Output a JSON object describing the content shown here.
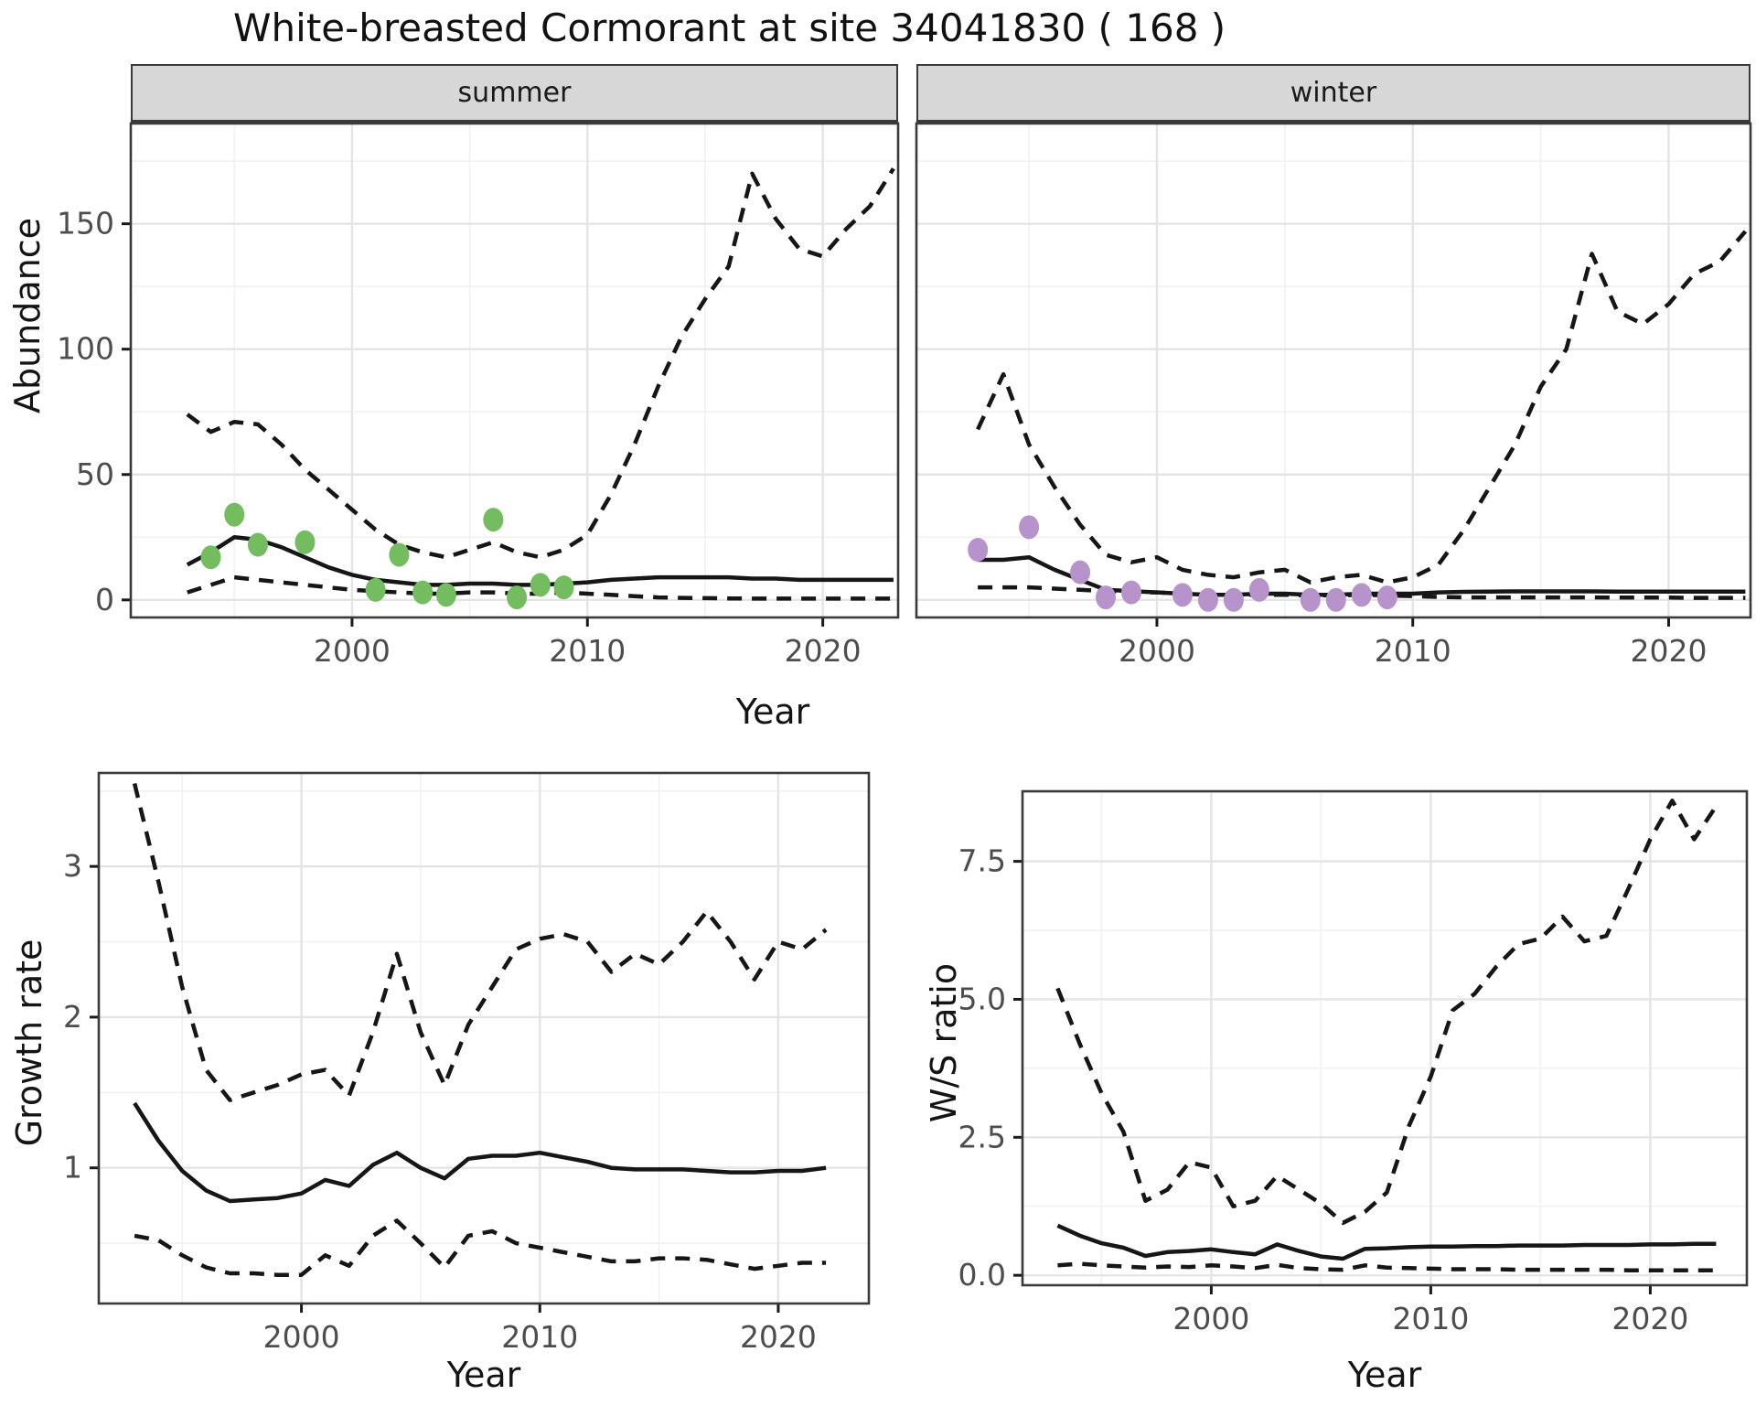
{
  "title": "White-breasted Cormorant at site 34041830 ( 168 )",
  "labels": {
    "year": "Year",
    "abundance": "Abundance",
    "growth_rate": "Growth rate",
    "ws_ratio": "W/S ratio"
  },
  "colors": {
    "summer_points": "#74bc60",
    "winter_points": "#b793cb",
    "line": "#161616",
    "grid_major": "#e4e4e4",
    "grid_minor": "#f1f1f1",
    "strip_bg": "#d7d7d7",
    "panel_border": "#3a3a3a",
    "axis_text": "#4d4d4d"
  },
  "chart_data": [
    {
      "type": "line",
      "facet": "summer",
      "xlabel": "Year",
      "ylabel": "Abundance",
      "xlim": [
        1990.6,
        2023.2
      ],
      "ylim": [
        -7,
        190
      ],
      "x_ticks": [
        2000,
        2010,
        2020
      ],
      "x_tick_labels": [
        "2000",
        "2010",
        "2020"
      ],
      "x_minor": [
        1995,
        2005,
        2015
      ],
      "y_ticks": [
        0,
        50,
        100,
        150
      ],
      "y_tick_labels": [
        "0",
        "50",
        "100",
        "150"
      ],
      "y_minor": [
        25,
        75,
        125,
        175
      ],
      "grid": true,
      "legend": "none",
      "years": [
        1993,
        1994,
        1995,
        1996,
        1997,
        1998,
        1999,
        2000,
        2001,
        2002,
        2003,
        2004,
        2005,
        2006,
        2007,
        2008,
        2009,
        2010,
        2011,
        2012,
        2013,
        2014,
        2015,
        2016,
        2017,
        2018,
        2019,
        2020,
        2021,
        2022,
        2023
      ],
      "series": [
        {
          "name": "fit",
          "style": "solid",
          "values": [
            14,
            19,
            25,
            24,
            21,
            17,
            13,
            10,
            8,
            7,
            6,
            6,
            6.5,
            6.5,
            6,
            6,
            6.5,
            7,
            8,
            8.5,
            9,
            9,
            9,
            9,
            8.5,
            8.5,
            8,
            8,
            8,
            8,
            8
          ]
        },
        {
          "name": "upper_ci",
          "style": "dashed",
          "values": [
            74,
            67,
            71,
            70,
            62,
            52,
            44,
            36,
            28,
            22,
            19,
            17,
            20,
            23,
            19,
            17,
            20,
            26,
            42,
            62,
            85,
            105,
            120,
            133,
            170,
            152,
            140,
            137,
            148,
            157,
            172
          ]
        },
        {
          "name": "lower_ci",
          "style": "dashed",
          "values": [
            3,
            6,
            9,
            8,
            7,
            6,
            5,
            4,
            3.5,
            3,
            2.5,
            2.5,
            3,
            3,
            2.5,
            2.5,
            3,
            2.5,
            2,
            1.5,
            1,
            0.8,
            0.7,
            0.6,
            0.5,
            0.5,
            0.5,
            0.5,
            0.5,
            0.5,
            0.5
          ]
        }
      ],
      "points": {
        "color_key": "summer_points",
        "x": [
          1994,
          1995,
          1996,
          1998,
          2001,
          2002,
          2003,
          2004,
          2006,
          2007,
          2008,
          2009
        ],
        "y": [
          17,
          34,
          22,
          23,
          4,
          18,
          3,
          2,
          32,
          1,
          6,
          5
        ]
      }
    },
    {
      "type": "line",
      "facet": "winter",
      "xlabel": "Year",
      "ylabel": "Abundance",
      "xlim": [
        1990.6,
        2023.2
      ],
      "ylim": [
        -7,
        190
      ],
      "x_ticks": [
        2000,
        2010,
        2020
      ],
      "x_tick_labels": [
        "2000",
        "2010",
        "2020"
      ],
      "x_minor": [
        1995,
        2005,
        2015
      ],
      "y_ticks": [
        0,
        50,
        100,
        150
      ],
      "y_tick_labels": [],
      "y_minor": [
        25,
        75,
        125,
        175
      ],
      "grid": true,
      "legend": "none",
      "years": [
        1993,
        1994,
        1995,
        1996,
        1997,
        1998,
        1999,
        2000,
        2001,
        2002,
        2003,
        2004,
        2005,
        2006,
        2007,
        2008,
        2009,
        2010,
        2011,
        2012,
        2013,
        2014,
        2015,
        2016,
        2017,
        2018,
        2019,
        2020,
        2021,
        2022,
        2023
      ],
      "series": [
        {
          "name": "fit",
          "style": "solid",
          "values": [
            16,
            16,
            17,
            12,
            8,
            4,
            3.5,
            3,
            2.5,
            2,
            2,
            2.5,
            2.5,
            2,
            2,
            2.5,
            2.5,
            2.5,
            3,
            3.2,
            3.3,
            3.4,
            3.4,
            3.4,
            3.4,
            3.3,
            3.3,
            3.3,
            3.3,
            3.3,
            3.3
          ]
        },
        {
          "name": "upper_ci",
          "style": "dashed",
          "values": [
            68,
            90,
            62,
            45,
            30,
            18,
            15,
            17,
            12,
            10,
            9,
            11,
            12,
            7,
            9,
            10,
            7,
            9,
            14,
            28,
            45,
            62,
            85,
            100,
            138,
            115,
            110,
            118,
            130,
            135,
            147
          ]
        },
        {
          "name": "lower_ci",
          "style": "dashed",
          "values": [
            5,
            5,
            5,
            4.5,
            4,
            3.5,
            3,
            3,
            2.5,
            2,
            2,
            2,
            2,
            1.8,
            1.8,
            2,
            1.8,
            1.5,
            1.2,
            1,
            1,
            1,
            1,
            1,
            1,
            0.9,
            0.9,
            0.9,
            0.8,
            0.8,
            0.8
          ]
        }
      ],
      "points": {
        "color_key": "winter_points",
        "x": [
          1993,
          1995,
          1997,
          1998,
          1999,
          2001,
          2002,
          2003,
          2004,
          2006,
          2007,
          2008,
          2009
        ],
        "y": [
          20,
          29,
          11,
          1,
          3,
          2,
          0,
          0,
          4,
          0,
          0,
          2,
          1
        ]
      }
    },
    {
      "type": "line",
      "facet": "",
      "xlabel": "Year",
      "ylabel": "Growth rate",
      "xlim": [
        1991.5,
        2023.8
      ],
      "ylim": [
        0.1,
        3.62
      ],
      "x_ticks": [
        2000,
        2010,
        2020
      ],
      "x_tick_labels": [
        "2000",
        "2010",
        "2020"
      ],
      "x_minor": [
        1995,
        2005,
        2015
      ],
      "y_ticks": [
        1,
        2,
        3
      ],
      "y_tick_labels": [
        "1",
        "2",
        "3"
      ],
      "y_minor": [
        0.5,
        1.5,
        2.5,
        3.5
      ],
      "grid": true,
      "legend": "none",
      "years": [
        1993,
        1994,
        1995,
        1996,
        1997,
        1998,
        1999,
        2000,
        2001,
        2002,
        2003,
        2004,
        2005,
        2006,
        2007,
        2008,
        2009,
        2010,
        2011,
        2012,
        2013,
        2014,
        2015,
        2016,
        2017,
        2018,
        2019,
        2020,
        2021,
        2022
      ],
      "series": [
        {
          "name": "fit",
          "style": "solid",
          "values": [
            1.43,
            1.18,
            0.98,
            0.85,
            0.78,
            0.79,
            0.8,
            0.83,
            0.92,
            0.88,
            1.02,
            1.1,
            1.0,
            0.93,
            1.06,
            1.08,
            1.08,
            1.1,
            1.07,
            1.04,
            1.0,
            0.99,
            0.99,
            0.99,
            0.98,
            0.97,
            0.97,
            0.98,
            0.98,
            1.0
          ]
        },
        {
          "name": "upper_ci",
          "style": "dashed",
          "values": [
            3.55,
            2.9,
            2.2,
            1.65,
            1.45,
            1.5,
            1.55,
            1.62,
            1.65,
            1.48,
            1.9,
            2.42,
            1.9,
            1.55,
            1.95,
            2.2,
            2.45,
            2.52,
            2.55,
            2.5,
            2.3,
            2.42,
            2.35,
            2.5,
            2.7,
            2.5,
            2.25,
            2.5,
            2.45,
            2.58
          ]
        },
        {
          "name": "lower_ci",
          "style": "dashed",
          "values": [
            0.55,
            0.52,
            0.42,
            0.34,
            0.3,
            0.3,
            0.29,
            0.29,
            0.42,
            0.35,
            0.55,
            0.65,
            0.5,
            0.34,
            0.55,
            0.58,
            0.5,
            0.47,
            0.44,
            0.41,
            0.38,
            0.38,
            0.4,
            0.4,
            0.39,
            0.36,
            0.33,
            0.35,
            0.37,
            0.37
          ]
        }
      ],
      "points": null
    },
    {
      "type": "line",
      "facet": "",
      "xlabel": "Year",
      "ylabel": "W/S ratio",
      "xlim": [
        1991.4,
        2024.4
      ],
      "ylim": [
        -0.18,
        8.77
      ],
      "x_ticks": [
        2000,
        2010,
        2020
      ],
      "x_tick_labels": [
        "2000",
        "2010",
        "2020"
      ],
      "x_minor": [
        1995,
        2005,
        2015
      ],
      "y_ticks": [
        0,
        2.5,
        5,
        7.5
      ],
      "y_tick_labels": [
        "0.0",
        "2.5",
        "5.0",
        "7.5"
      ],
      "y_minor": [
        1.25,
        3.75,
        6.25,
        8.75
      ],
      "grid": true,
      "legend": "none",
      "years": [
        1993,
        1994,
        1995,
        1996,
        1997,
        1998,
        1999,
        2000,
        2001,
        2002,
        2003,
        2004,
        2005,
        2006,
        2007,
        2008,
        2009,
        2010,
        2011,
        2012,
        2013,
        2014,
        2015,
        2016,
        2017,
        2018,
        2019,
        2020,
        2021,
        2022,
        2023
      ],
      "series": [
        {
          "name": "fit",
          "style": "solid",
          "values": [
            0.9,
            0.72,
            0.58,
            0.5,
            0.35,
            0.42,
            0.44,
            0.47,
            0.42,
            0.38,
            0.56,
            0.44,
            0.34,
            0.3,
            0.48,
            0.49,
            0.51,
            0.52,
            0.52,
            0.53,
            0.53,
            0.54,
            0.54,
            0.54,
            0.55,
            0.55,
            0.55,
            0.56,
            0.56,
            0.57,
            0.57
          ]
        },
        {
          "name": "upper_ci",
          "style": "dashed",
          "values": [
            5.2,
            4.2,
            3.3,
            2.6,
            1.35,
            1.55,
            2.05,
            1.95,
            1.25,
            1.35,
            1.8,
            1.55,
            1.3,
            0.95,
            1.15,
            1.5,
            2.7,
            3.6,
            4.8,
            5.1,
            5.6,
            6.0,
            6.1,
            6.5,
            6.05,
            6.15,
            7.0,
            7.9,
            8.6,
            7.9,
            8.5
          ]
        },
        {
          "name": "lower_ci",
          "style": "dashed",
          "values": [
            0.18,
            0.21,
            0.18,
            0.16,
            0.14,
            0.16,
            0.15,
            0.18,
            0.16,
            0.13,
            0.19,
            0.13,
            0.11,
            0.1,
            0.18,
            0.14,
            0.13,
            0.12,
            0.11,
            0.11,
            0.11,
            0.1,
            0.1,
            0.1,
            0.1,
            0.1,
            0.09,
            0.09,
            0.09,
            0.09,
            0.09
          ]
        }
      ],
      "points": null
    }
  ]
}
